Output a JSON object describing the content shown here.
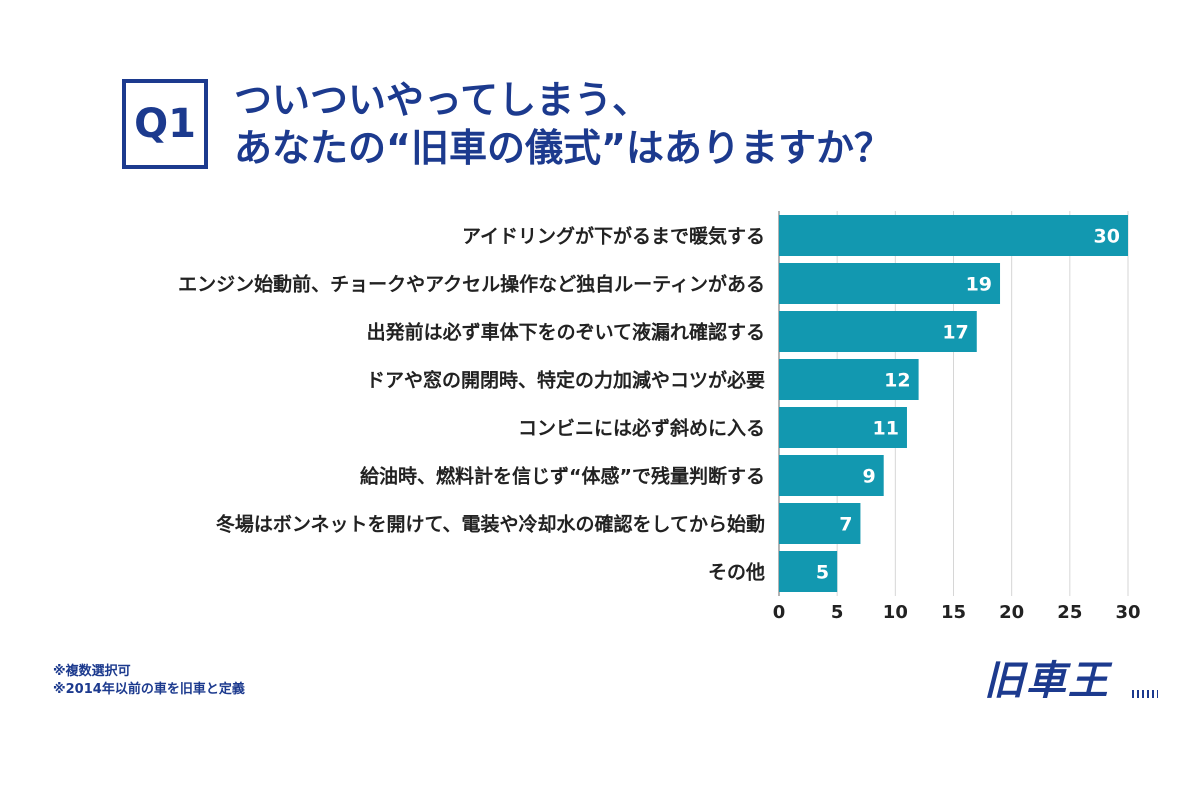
{
  "header": {
    "badge": "Q1",
    "title_line1": "ついついやってしまう、",
    "title_line2": "あなたの“旧車の儀式”はありますか？"
  },
  "chart_data": {
    "type": "bar",
    "orientation": "horizontal",
    "categories": [
      "アイドリングが下がるまで暖気する",
      "エンジン始動前、チョークやアクセル操作など独自ルーティンがある",
      "出発前は必ず車体下をのぞいて液漏れ確認する",
      "ドアや窓の開閉時、特定の力加減やコツが必要",
      "コンビニには必ず斜めに入る",
      "給油時、燃料計を信じず“体感”で残量判断する",
      "冬場はボンネットを開けて、電装や冷却水の確認をしてから始動",
      "その他"
    ],
    "values": [
      30,
      19,
      17,
      12,
      11,
      9,
      7,
      5
    ],
    "xlim": [
      0,
      30
    ],
    "xticks": [
      "0",
      "5",
      "10",
      "15",
      "20",
      "25",
      "30"
    ],
    "grid": true,
    "bar_color": "#1298b0",
    "data_labels": true
  },
  "notes": {
    "line1": "※複数選択可",
    "line2": "※2014年以前の車を旧車と定義"
  },
  "logo": {
    "text": "旧車王"
  },
  "colors": {
    "accent": "#1c3a8e",
    "bar": "#1298b0"
  }
}
